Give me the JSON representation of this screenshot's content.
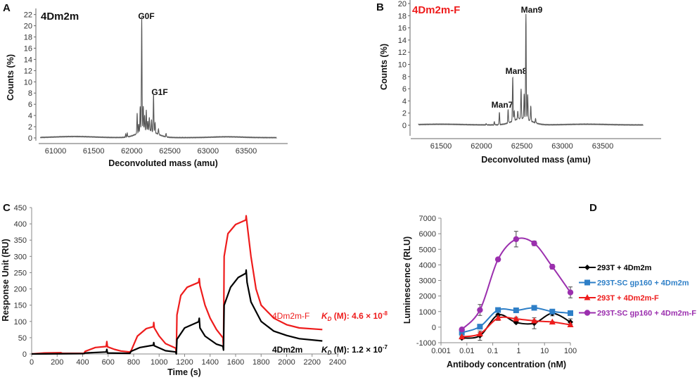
{
  "chart_data": [
    {
      "panel": "A",
      "type": "line",
      "inset_label": "4Dm2m",
      "xlabel": "Deconvoluted mass (amu)",
      "ylabel": "Counts (%)",
      "xlim": [
        60800,
        63900
      ],
      "ylim": [
        0,
        22
      ],
      "xticks": [
        61000,
        61500,
        62000,
        62500,
        63000,
        63500
      ],
      "yticks": [
        0,
        2,
        4,
        6,
        8,
        10,
        12,
        14,
        16,
        18,
        20,
        22
      ],
      "line_color": "#555555",
      "annotations": [
        {
          "text": "G0F",
          "mass": 62130
        },
        {
          "text": "G1F",
          "mass": 62285
        }
      ],
      "peaks": [
        [
          61920,
          0.5
        ],
        [
          61940,
          0.7
        ],
        [
          62070,
          3.6
        ],
        [
          62090,
          1.5
        ],
        [
          62110,
          4.6
        ],
        [
          62130,
          20.5
        ],
        [
          62150,
          4.5
        ],
        [
          62168,
          2.8
        ],
        [
          62190,
          3.6
        ],
        [
          62210,
          1.6
        ],
        [
          62230,
          2.4
        ],
        [
          62258,
          2.0
        ],
        [
          62285,
          6.8
        ],
        [
          62305,
          1.8
        ],
        [
          62350,
          1.0
        ],
        [
          62450,
          0.6
        ]
      ],
      "broad": [
        [
          62200,
          1.3,
          120
        ],
        [
          61250,
          0.2,
          250
        ],
        [
          63250,
          0.15,
          200
        ]
      ]
    },
    {
      "panel": "B",
      "type": "line",
      "inset_label": "4Dm2m-F",
      "xlabel": "Deconvoluted mass (amu)",
      "ylabel": "Counts (%)",
      "xlim": [
        61220,
        64000
      ],
      "ylim": [
        0,
        20
      ],
      "xticks": [
        61500,
        62000,
        62500,
        63000,
        63500
      ],
      "yticks": [
        0,
        2,
        4,
        6,
        8,
        10,
        12,
        14,
        16,
        18,
        20
      ],
      "line_color": "#555555",
      "annotations": [
        {
          "text": "Man7",
          "mass": 62220
        },
        {
          "text": "Man8",
          "mass": 62385
        },
        {
          "text": "Man9",
          "mass": 62550
        }
      ],
      "peaks": [
        [
          62060,
          0.2
        ],
        [
          62160,
          0.5
        ],
        [
          62222,
          2.0
        ],
        [
          62330,
          2.2
        ],
        [
          62387,
          7.4
        ],
        [
          62405,
          1.6
        ],
        [
          62450,
          1.3
        ],
        [
          62490,
          4.9
        ],
        [
          62528,
          4.0
        ],
        [
          62550,
          17.2
        ],
        [
          62572,
          4.2
        ],
        [
          62610,
          2.5
        ],
        [
          62670,
          0.7
        ]
      ],
      "broad": [
        [
          62500,
          1.1,
          110
        ],
        [
          61500,
          0.12,
          250
        ],
        [
          63300,
          0.12,
          250
        ]
      ]
    },
    {
      "panel": "C",
      "type": "line",
      "xlabel": "Time (s)",
      "ylabel": "Response Unit (RU)",
      "xlim": [
        0,
        2400
      ],
      "ylim": [
        0,
        450
      ],
      "xticks": [
        0,
        200,
        400,
        600,
        800,
        1000,
        1200,
        1400,
        1600,
        1800,
        2000,
        2200,
        2400
      ],
      "yticks": [
        0,
        50,
        100,
        150,
        200,
        250,
        300,
        350,
        400,
        450
      ],
      "series": [
        {
          "name": "4Dm2m-F",
          "color": "#ee1c1c",
          "kd_label": "(M): 4.6 × 10",
          "kd_exp": "-8",
          "points": [
            [
              0,
              0
            ],
            [
              100,
              3
            ],
            [
              230,
              4
            ],
            [
              240,
              2
            ],
            [
              410,
              2
            ],
            [
              420,
              8
            ],
            [
              500,
              20
            ],
            [
              585,
              23
            ],
            [
              590,
              38
            ],
            [
              595,
              22
            ],
            [
              650,
              14
            ],
            [
              700,
              9
            ],
            [
              770,
              6
            ],
            [
              780,
              10
            ],
            [
              830,
              55
            ],
            [
              900,
              78
            ],
            [
              955,
              84
            ],
            [
              958,
              97
            ],
            [
              962,
              80
            ],
            [
              1000,
              55
            ],
            [
              1050,
              32
            ],
            [
              1130,
              18
            ],
            [
              1135,
              2
            ],
            [
              1140,
              120
            ],
            [
              1170,
              180
            ],
            [
              1220,
              205
            ],
            [
              1310,
              220
            ],
            [
              1315,
              232
            ],
            [
              1320,
              210
            ],
            [
              1360,
              150
            ],
            [
              1400,
              110
            ],
            [
              1450,
              75
            ],
            [
              1500,
              50
            ],
            [
              1505,
              20
            ],
            [
              1510,
              300
            ],
            [
              1540,
              370
            ],
            [
              1600,
              398
            ],
            [
              1680,
              412
            ],
            [
              1683,
              425
            ],
            [
              1690,
              400
            ],
            [
              1720,
              300
            ],
            [
              1760,
              200
            ],
            [
              1800,
              150
            ],
            [
              1900,
              110
            ],
            [
              2000,
              90
            ],
            [
              2100,
              80
            ],
            [
              2280,
              75
            ]
          ]
        },
        {
          "name": "4Dm2m",
          "color": "#000000",
          "kd_label": "(M): 1.2 × 10",
          "kd_exp": "-7",
          "points": [
            [
              0,
              0
            ],
            [
              410,
              1
            ],
            [
              420,
              3
            ],
            [
              585,
              6
            ],
            [
              590,
              14
            ],
            [
              595,
              3
            ],
            [
              770,
              2
            ],
            [
              780,
              8
            ],
            [
              850,
              20
            ],
            [
              955,
              27
            ],
            [
              958,
              35
            ],
            [
              962,
              25
            ],
            [
              1050,
              10
            ],
            [
              1130,
              6
            ],
            [
              1135,
              0
            ],
            [
              1140,
              45
            ],
            [
              1200,
              80
            ],
            [
              1310,
              99
            ],
            [
              1315,
              110
            ],
            [
              1320,
              80
            ],
            [
              1360,
              55
            ],
            [
              1450,
              30
            ],
            [
              1500,
              24
            ],
            [
              1505,
              12
            ],
            [
              1510,
              150
            ],
            [
              1560,
              205
            ],
            [
              1620,
              235
            ],
            [
              1680,
              248
            ],
            [
              1683,
              258
            ],
            [
              1690,
              220
            ],
            [
              1720,
              160
            ],
            [
              1800,
              100
            ],
            [
              1900,
              70
            ],
            [
              2000,
              57
            ],
            [
              2100,
              47
            ],
            [
              2280,
              40
            ]
          ]
        }
      ],
      "kd_symbol": "K",
      "kd_sub": "D"
    },
    {
      "panel": "D",
      "type": "line",
      "xscale": "log",
      "xlabel": "Antibody concentration (nM)",
      "ylabel": "Luminescence (RLU)",
      "xlim": [
        0.001,
        100
      ],
      "ylim": [
        -1000,
        7000
      ],
      "xticks": [
        "0.001",
        "0.01",
        "0.1",
        "1",
        "10",
        "100"
      ],
      "yticks": [
        -1000,
        0,
        1000,
        2000,
        3000,
        4000,
        5000,
        6000,
        7000
      ],
      "legend": "right",
      "x": [
        0.0064,
        0.032,
        0.16,
        0.8,
        4,
        20,
        100
      ],
      "series": [
        {
          "name": "293T + 4Dm2m",
          "color": "#000000",
          "marker": "diamond",
          "values": [
            -700,
            -550,
            780,
            300,
            250,
            880,
            330
          ],
          "errors": [
            60,
            300,
            80,
            60,
            350,
            150,
            200
          ]
        },
        {
          "name": "293T-SC gp160 + 4Dm2m",
          "color": "#2e7fc7",
          "marker": "square",
          "values": [
            -350,
            30,
            1100,
            1080,
            1240,
            1000,
            900
          ],
          "errors": [
            50,
            150,
            60,
            80,
            60,
            60,
            50
          ]
        },
        {
          "name": "293T + 4Dm2m-F",
          "color": "#ee1c1c",
          "marker": "triangle",
          "values": [
            -620,
            -430,
            580,
            530,
            400,
            330,
            150
          ],
          "errors": [
            50,
            80,
            150,
            100,
            60,
            40,
            40
          ]
        },
        {
          "name": "293T-SC gp160 + 4Dm2m-F",
          "color": "#9b2fae",
          "marker": "circle",
          "values": [
            -150,
            1100,
            4350,
            5650,
            5380,
            3880,
            2230
          ],
          "errors": [
            60,
            350,
            60,
            500,
            150,
            150,
            350
          ]
        }
      ]
    }
  ],
  "panel_labels": [
    "A",
    "B",
    "C",
    "D"
  ]
}
